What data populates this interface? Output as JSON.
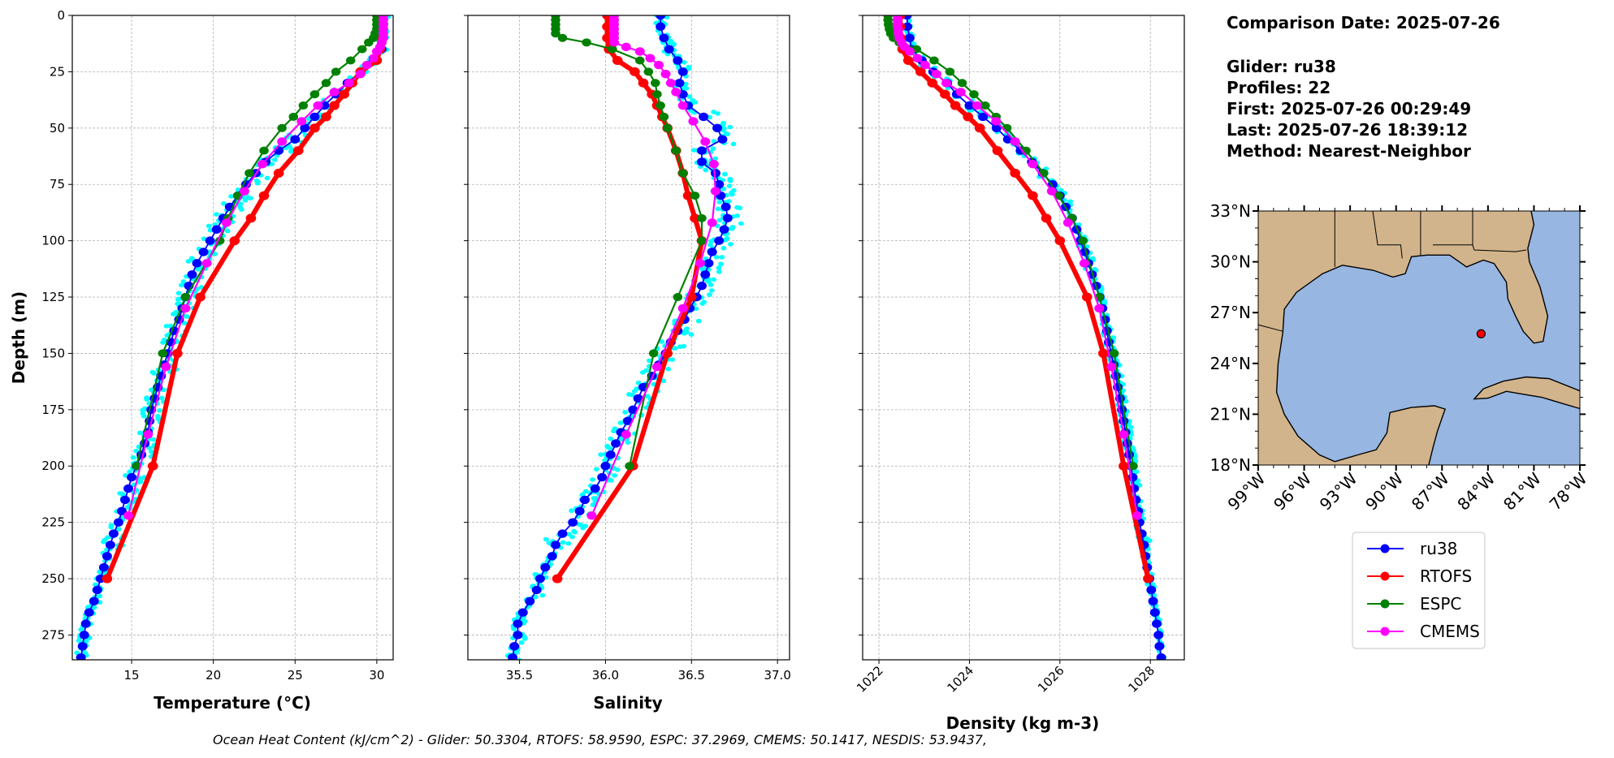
{
  "chart_data": [
    {
      "type": "line",
      "id": "temperature",
      "xlabel": "Temperature (°C)",
      "ylabel": "Depth (m)",
      "xlim": [
        11.37,
        31.0
      ],
      "ylim": [
        286,
        0
      ],
      "xticks": [
        15,
        20,
        25,
        30
      ],
      "yticks": [
        0,
        25,
        50,
        75,
        100,
        125,
        150,
        175,
        200,
        225,
        250,
        275
      ],
      "grid": true,
      "scatter_spread": 0.55,
      "series": [
        {
          "name": "ru38",
          "depth": [
            0,
            5,
            10,
            15,
            20,
            25,
            30,
            35,
            40,
            45,
            50,
            55,
            60,
            65,
            70,
            75,
            80,
            85,
            90,
            95,
            100,
            105,
            110,
            115,
            120,
            125,
            130,
            135,
            140,
            145,
            150,
            155,
            160,
            165,
            170,
            175,
            180,
            185,
            190,
            195,
            200,
            205,
            210,
            215,
            220,
            225,
            230,
            235,
            240,
            245,
            250,
            255,
            260,
            265,
            270,
            275,
            280,
            285
          ],
          "values": [
            30.3,
            30.3,
            30.3,
            30.3,
            29.8,
            29.0,
            28.2,
            27.5,
            26.8,
            26.2,
            25.6,
            25.0,
            24.0,
            23.2,
            22.6,
            22.0,
            21.5,
            21.0,
            20.6,
            20.2,
            19.8,
            19.4,
            19.0,
            18.7,
            18.5,
            18.3,
            18.1,
            17.9,
            17.6,
            17.4,
            17.2,
            17.0,
            16.8,
            16.6,
            16.4,
            16.2,
            16.1,
            16.0,
            15.8,
            15.6,
            15.3,
            15.0,
            14.8,
            14.6,
            14.4,
            14.2,
            13.9,
            13.7,
            13.5,
            13.3,
            13.1,
            12.9,
            12.7,
            12.4,
            12.2,
            12.1,
            12.0,
            11.9
          ]
        },
        {
          "name": "RTOFS",
          "depth": [
            0,
            5,
            10,
            15,
            20,
            25,
            30,
            35,
            40,
            45,
            50,
            60,
            70,
            80,
            90,
            100,
            125,
            150,
            200,
            250
          ],
          "values": [
            30.3,
            30.3,
            30.3,
            30.2,
            30.0,
            29.0,
            28.5,
            28.0,
            27.4,
            26.9,
            26.2,
            25.2,
            24.0,
            23.1,
            22.3,
            21.3,
            19.2,
            17.8,
            16.3,
            13.5
          ]
        },
        {
          "name": "ESPC",
          "depth": [
            0,
            2,
            4,
            6,
            8,
            10,
            12,
            15,
            20,
            25,
            30,
            35,
            40,
            45,
            50,
            60,
            70,
            80,
            90,
            100,
            125,
            150,
            200
          ],
          "values": [
            30.0,
            30.0,
            30.0,
            30.0,
            29.9,
            29.8,
            29.5,
            29.1,
            28.4,
            27.5,
            26.9,
            26.2,
            25.5,
            24.9,
            24.2,
            23.1,
            22.2,
            21.5,
            20.9,
            20.4,
            18.3,
            16.9,
            15.3
          ]
        },
        {
          "name": "CMEMS",
          "depth": [
            0,
            2,
            4,
            6,
            8,
            10,
            12,
            14,
            16,
            19,
            22,
            26,
            30,
            34,
            40,
            47,
            56,
            66,
            78,
            92,
            110,
            130,
            156,
            186,
            222
          ],
          "values": [
            30.4,
            30.4,
            30.4,
            30.4,
            30.4,
            30.4,
            30.3,
            30.2,
            30.0,
            29.8,
            29.4,
            29.0,
            28.3,
            27.4,
            26.4,
            25.4,
            24.2,
            23.0,
            21.9,
            20.8,
            19.6,
            18.3,
            17.1,
            16.0,
            14.8
          ]
        }
      ]
    },
    {
      "type": "line",
      "id": "salinity",
      "xlabel": "Salinity",
      "xlim": [
        35.2,
        37.07
      ],
      "ylim": [
        286,
        0
      ],
      "xticks": [
        35.5,
        36.0,
        36.5,
        37.0
      ],
      "xtick_labels": [
        "35.5",
        "36.0",
        "36.5",
        "37.0"
      ],
      "yticks": [
        0,
        25,
        50,
        75,
        100,
        125,
        150,
        175,
        200,
        225,
        250,
        275
      ],
      "grid": true,
      "scatter_spread": 0.06,
      "series": [
        {
          "name": "ru38",
          "depth": [
            0,
            5,
            10,
            15,
            20,
            25,
            30,
            35,
            40,
            45,
            50,
            55,
            60,
            65,
            70,
            75,
            80,
            85,
            90,
            95,
            100,
            105,
            110,
            115,
            120,
            125,
            130,
            135,
            140,
            145,
            150,
            155,
            160,
            165,
            170,
            175,
            180,
            185,
            190,
            195,
            200,
            205,
            210,
            215,
            220,
            225,
            230,
            235,
            240,
            245,
            250,
            255,
            260,
            265,
            270,
            275,
            280,
            285
          ],
          "values": [
            36.32,
            36.32,
            36.34,
            36.37,
            36.42,
            36.45,
            36.43,
            36.45,
            36.48,
            36.57,
            36.65,
            36.68,
            36.56,
            36.56,
            36.64,
            36.66,
            36.67,
            36.7,
            36.71,
            36.69,
            36.66,
            36.62,
            36.6,
            36.58,
            36.56,
            36.53,
            36.49,
            36.46,
            36.42,
            36.38,
            36.35,
            36.31,
            36.27,
            36.22,
            36.19,
            36.16,
            36.13,
            36.09,
            36.06,
            36.03,
            36.0,
            35.98,
            35.94,
            35.88,
            35.85,
            35.81,
            35.75,
            35.71,
            35.69,
            35.65,
            35.62,
            35.6,
            35.56,
            35.52,
            35.49,
            35.49,
            35.47,
            35.46
          ]
        },
        {
          "name": "RTOFS",
          "depth": [
            0,
            5,
            10,
            15,
            20,
            25,
            30,
            35,
            40,
            45,
            50,
            60,
            70,
            80,
            90,
            100,
            125,
            150,
            200,
            250
          ],
          "values": [
            36.01,
            36.01,
            36.01,
            36.02,
            36.07,
            36.17,
            36.22,
            36.27,
            36.3,
            36.33,
            36.36,
            36.41,
            36.45,
            36.48,
            36.52,
            36.56,
            36.5,
            36.36,
            36.16,
            35.72
          ]
        },
        {
          "name": "ESPC",
          "depth": [
            0,
            2,
            4,
            6,
            8,
            10,
            12,
            15,
            20,
            25,
            30,
            35,
            40,
            45,
            50,
            60,
            70,
            80,
            90,
            100,
            125,
            150,
            200
          ],
          "values": [
            35.71,
            35.71,
            35.71,
            35.71,
            35.71,
            35.75,
            35.89,
            36.04,
            36.2,
            36.25,
            36.29,
            36.3,
            36.32,
            36.34,
            36.36,
            36.41,
            36.45,
            36.52,
            36.56,
            36.56,
            36.42,
            36.28,
            36.14
          ]
        },
        {
          "name": "CMEMS",
          "depth": [
            0,
            2,
            4,
            6,
            8,
            10,
            12,
            14,
            16,
            19,
            22,
            26,
            30,
            34,
            40,
            47,
            56,
            66,
            78,
            92,
            110,
            130,
            156,
            186,
            222
          ],
          "values": [
            36.05,
            36.05,
            36.05,
            36.05,
            36.05,
            36.05,
            36.05,
            36.12,
            36.2,
            36.26,
            36.31,
            36.35,
            36.38,
            36.41,
            36.45,
            36.51,
            36.58,
            36.63,
            36.64,
            36.62,
            36.55,
            36.45,
            36.3,
            36.12,
            35.92
          ]
        }
      ]
    },
    {
      "type": "line",
      "id": "density",
      "xlabel": "Density (kg m-3)",
      "xlim": [
        1021.64,
        1028.75
      ],
      "ylim": [
        286,
        0
      ],
      "xticks": [
        1022,
        1024,
        1026,
        1028
      ],
      "yticks": [
        0,
        25,
        50,
        75,
        100,
        125,
        150,
        175,
        200,
        225,
        250,
        275
      ],
      "grid": true,
      "scatter_spread": 0.09,
      "series": [
        {
          "name": "ru38",
          "depth": [
            0,
            5,
            10,
            15,
            20,
            25,
            30,
            35,
            40,
            45,
            50,
            55,
            60,
            65,
            70,
            75,
            80,
            85,
            90,
            95,
            100,
            105,
            110,
            115,
            120,
            125,
            130,
            135,
            140,
            145,
            150,
            155,
            160,
            165,
            170,
            175,
            180,
            185,
            190,
            195,
            200,
            205,
            210,
            215,
            220,
            225,
            230,
            235,
            240,
            245,
            250,
            255,
            260,
            265,
            270,
            275,
            280,
            285
          ],
          "values": [
            1022.62,
            1022.63,
            1022.68,
            1022.72,
            1022.95,
            1023.2,
            1023.51,
            1023.72,
            1024.0,
            1024.3,
            1024.6,
            1024.85,
            1025.13,
            1025.38,
            1025.62,
            1025.84,
            1026.0,
            1026.13,
            1026.27,
            1026.37,
            1026.45,
            1026.55,
            1026.63,
            1026.71,
            1026.8,
            1026.88,
            1026.94,
            1027.0,
            1027.04,
            1027.08,
            1027.13,
            1027.19,
            1027.24,
            1027.28,
            1027.33,
            1027.37,
            1027.41,
            1027.45,
            1027.49,
            1027.53,
            1027.57,
            1027.61,
            1027.64,
            1027.68,
            1027.73,
            1027.76,
            1027.81,
            1027.86,
            1027.89,
            1027.93,
            1027.98,
            1028.02,
            1028.06,
            1028.1,
            1028.14,
            1028.18,
            1028.2,
            1028.24
          ]
        },
        {
          "name": "RTOFS",
          "depth": [
            0,
            5,
            10,
            15,
            20,
            25,
            30,
            35,
            40,
            45,
            50,
            60,
            70,
            80,
            90,
            100,
            125,
            150,
            200,
            250
          ],
          "values": [
            1022.47,
            1022.47,
            1022.48,
            1022.52,
            1022.65,
            1022.92,
            1023.18,
            1023.46,
            1023.69,
            1023.97,
            1024.23,
            1024.62,
            1025.01,
            1025.4,
            1025.7,
            1026.0,
            1026.6,
            1026.96,
            1027.41,
            1027.95
          ]
        },
        {
          "name": "ESPC",
          "depth": [
            0,
            2,
            4,
            6,
            8,
            10,
            12,
            15,
            20,
            25,
            30,
            35,
            40,
            45,
            50,
            60,
            70,
            80,
            90,
            100,
            125,
            150,
            200
          ],
          "values": [
            1022.2,
            1022.2,
            1022.21,
            1022.23,
            1022.26,
            1022.32,
            1022.45,
            1022.83,
            1023.22,
            1023.57,
            1023.84,
            1024.1,
            1024.35,
            1024.59,
            1024.83,
            1025.25,
            1025.64,
            1025.97,
            1026.27,
            1026.51,
            1026.87,
            1027.2,
            1027.62
          ]
        },
        {
          "name": "CMEMS",
          "depth": [
            0,
            2,
            4,
            6,
            8,
            10,
            12,
            14,
            16,
            19,
            22,
            26,
            30,
            34,
            40,
            47,
            56,
            66,
            78,
            92,
            110,
            130,
            156,
            186,
            222
          ],
          "values": [
            1022.41,
            1022.41,
            1022.41,
            1022.42,
            1022.43,
            1022.45,
            1022.5,
            1022.57,
            1022.68,
            1022.85,
            1023.02,
            1023.27,
            1023.49,
            1023.81,
            1024.17,
            1024.59,
            1025.01,
            1025.4,
            1025.82,
            1026.18,
            1026.54,
            1026.87,
            1027.14,
            1027.41,
            1027.71
          ]
        }
      ]
    },
    {
      "type": "map",
      "id": "location-map",
      "lon_range": [
        -99,
        -78
      ],
      "lat_range": [
        18,
        33
      ],
      "lat_ticks": [
        33,
        30,
        27,
        24,
        21,
        18
      ],
      "lat_tick_labels": [
        "33°N",
        "30°N",
        "27°N",
        "24°N",
        "21°N",
        "18°N"
      ],
      "lon_ticks": [
        -99,
        -96,
        -93,
        -90,
        -87,
        -84,
        -81,
        -78
      ],
      "lon_tick_labels": [
        "99°W",
        "96°W",
        "93°W",
        "90°W",
        "87°W",
        "84°W",
        "81°W",
        "78°W"
      ],
      "glider_position": {
        "lon": -84.45,
        "lat": 25.75
      },
      "land_color": "#d2b48c",
      "water_color": "#97b6e1"
    }
  ],
  "colors": {
    "ru38": "#0000ff",
    "RTOFS": "#ff0000",
    "ESPC": "#008000",
    "CMEMS": "#ff00ff",
    "glider_profiles": "#00ffff",
    "grid": "#b0b0b0"
  },
  "info": {
    "comparison_date": "Comparison Date: 2025-07-26",
    "glider": "Glider: ru38",
    "profiles": "Profiles: 22",
    "first": "First: 2025-07-26 00:29:49",
    "last": "Last: 2025-07-26 18:39:12",
    "method": "Method: Nearest-Neighbor"
  },
  "legend": {
    "placement": "below-map",
    "entries": [
      "ru38",
      "RTOFS",
      "ESPC",
      "CMEMS"
    ]
  },
  "caption": "Ocean Heat Content (kJ/cm^2) - Glider: 50.3304,  RTOFS: 58.9590,  ESPC: 37.2969,  CMEMS: 50.1417,  NESDIS: 53.9437,"
}
